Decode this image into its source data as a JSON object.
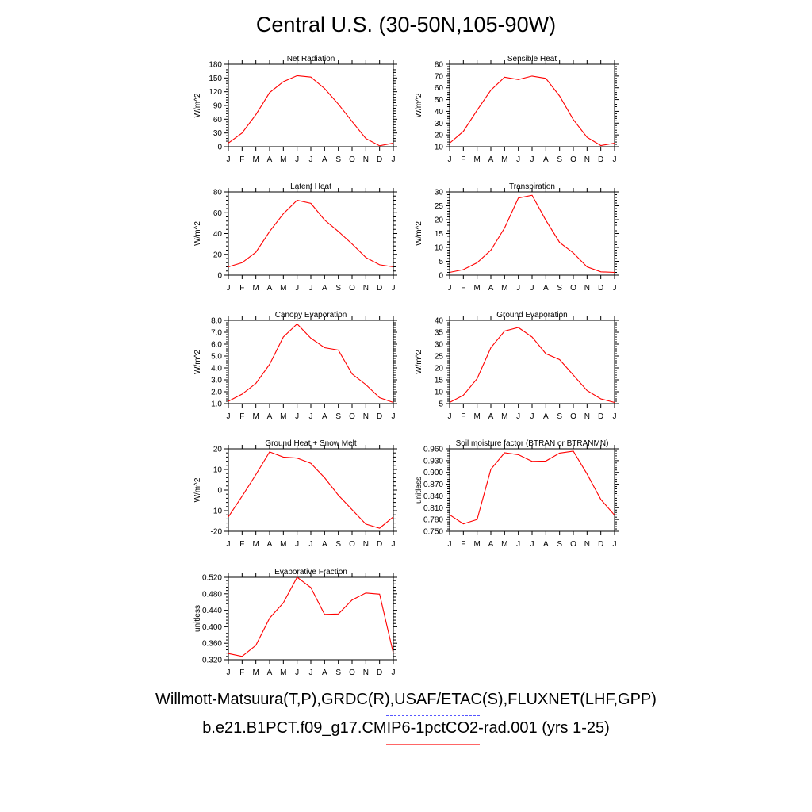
{
  "title": "Central U.S. (30-50N,105-90W)",
  "footer": {
    "obs_label": "Willmott-Matsuura(T,P),GRDC(R),USAF/ETAC(S),FLUXNET(LHF,GPP)",
    "model_label": "b.e21.B1PCT.f09_g17.CMIP6-1pctCO2-rad.001 (yrs 1-25)"
  },
  "colors": {
    "model_line": "#ff0000",
    "obs_line": "#5555ff",
    "axis": "#000000"
  },
  "chart_data": [
    {
      "type": "line",
      "title": "Net Radiation",
      "ylabel": "W/m^2",
      "ylim": [
        0,
        180
      ],
      "yticks": [
        "0",
        "30",
        "60",
        "90",
        "120",
        "150",
        "180"
      ],
      "x": [
        "J",
        "F",
        "M",
        "A",
        "M",
        "J",
        "J",
        "A",
        "S",
        "O",
        "N",
        "D",
        "J"
      ],
      "series": [
        {
          "values": [
            8,
            30,
            70,
            118,
            142,
            155,
            152,
            127,
            93,
            55,
            18,
            2,
            8
          ]
        }
      ]
    },
    {
      "type": "line",
      "title": "Sensible Heat",
      "ylabel": "W/m^2",
      "ylim": [
        10,
        80
      ],
      "yticks": [
        "10",
        "20",
        "30",
        "40",
        "50",
        "60",
        "70",
        "80"
      ],
      "x": [
        "J",
        "F",
        "M",
        "A",
        "M",
        "J",
        "J",
        "A",
        "S",
        "O",
        "N",
        "D",
        "J"
      ],
      "series": [
        {
          "values": [
            13,
            23,
            41,
            58,
            69,
            67,
            70,
            68,
            53,
            33,
            18,
            11,
            13
          ]
        }
      ]
    },
    {
      "type": "line",
      "title": "Latent Heat",
      "ylabel": "W/m^2",
      "ylim": [
        0,
        80
      ],
      "yticks": [
        "0",
        "20",
        "40",
        "60",
        "80"
      ],
      "x": [
        "J",
        "F",
        "M",
        "A",
        "M",
        "J",
        "J",
        "A",
        "S",
        "O",
        "N",
        "D",
        "J"
      ],
      "series": [
        {
          "values": [
            8,
            12,
            22,
            42,
            59,
            72,
            69,
            53,
            42,
            30,
            17,
            10,
            8
          ]
        }
      ]
    },
    {
      "type": "line",
      "title": "Transpiration",
      "ylabel": "W/m^2",
      "ylim": [
        0,
        30
      ],
      "yticks": [
        "0",
        "5",
        "10",
        "15",
        "20",
        "25",
        "30"
      ],
      "x": [
        "J",
        "F",
        "M",
        "A",
        "M",
        "J",
        "J",
        "A",
        "S",
        "O",
        "N",
        "D",
        "J"
      ],
      "series": [
        {
          "values": [
            1.0,
            2.0,
            4.5,
            9.0,
            17.0,
            27.8,
            28.8,
            19.8,
            11.8,
            8.0,
            3.0,
            1.2,
            1.0
          ]
        }
      ]
    },
    {
      "type": "line",
      "title": "Canopy Evaporation",
      "ylabel": "W/m^2",
      "ylim": [
        1.0,
        8.0
      ],
      "yticks": [
        "1.0",
        "2.0",
        "3.0",
        "4.0",
        "5.0",
        "6.0",
        "7.0",
        "8.0"
      ],
      "x": [
        "J",
        "F",
        "M",
        "A",
        "M",
        "J",
        "J",
        "A",
        "S",
        "O",
        "N",
        "D",
        "J"
      ],
      "series": [
        {
          "values": [
            1.2,
            1.8,
            2.7,
            4.3,
            6.6,
            7.7,
            6.5,
            5.7,
            5.5,
            3.5,
            2.6,
            1.5,
            1.1
          ]
        }
      ]
    },
    {
      "type": "line",
      "title": "Ground Evaporation",
      "ylabel": "W/m^2",
      "ylim": [
        5,
        40
      ],
      "yticks": [
        "5",
        "10",
        "15",
        "20",
        "25",
        "30",
        "35",
        "40"
      ],
      "x": [
        "J",
        "F",
        "M",
        "A",
        "M",
        "J",
        "J",
        "A",
        "S",
        "O",
        "N",
        "D",
        "J"
      ],
      "series": [
        {
          "values": [
            5.5,
            8.5,
            15.5,
            28.5,
            35.5,
            37,
            33,
            26,
            23.5,
            17,
            10.5,
            7,
            5.5
          ]
        }
      ]
    },
    {
      "type": "line",
      "title": "Ground Heat + Snow Melt",
      "ylabel": "W/m^2",
      "ylim": [
        -20,
        20
      ],
      "yticks": [
        "-20",
        "-10",
        "0",
        "10",
        "20"
      ],
      "x": [
        "J",
        "F",
        "M",
        "A",
        "M",
        "J",
        "J",
        "A",
        "S",
        "O",
        "N",
        "D",
        "J"
      ],
      "series": [
        {
          "values": [
            -13,
            -3,
            7.5,
            18.5,
            16,
            15.5,
            13,
            6,
            -2.5,
            -9.5,
            -16.5,
            -18.5,
            -13
          ]
        }
      ]
    },
    {
      "type": "line",
      "title": "Soil moisture factor (BTRAN or BTRANMN)",
      "ylabel": "unitless",
      "ylim": [
        0.75,
        0.96
      ],
      "yticks": [
        "0.750",
        "0.780",
        "0.810",
        "0.840",
        "0.870",
        "0.900",
        "0.930",
        "0.960"
      ],
      "x": [
        "J",
        "F",
        "M",
        "A",
        "M",
        "J",
        "J",
        "A",
        "S",
        "O",
        "N",
        "D",
        "J"
      ],
      "series": [
        {
          "values": [
            0.792,
            0.769,
            0.78,
            0.908,
            0.95,
            0.945,
            0.928,
            0.929,
            0.949,
            0.954,
            0.896,
            0.831,
            0.791
          ]
        }
      ]
    },
    {
      "type": "line",
      "title": "Evaporative Fraction",
      "ylabel": "unitless",
      "ylim": [
        0.32,
        0.52
      ],
      "yticks": [
        "0.320",
        "0.360",
        "0.400",
        "0.440",
        "0.480",
        "0.520"
      ],
      "x": [
        "J",
        "F",
        "M",
        "A",
        "M",
        "J",
        "J",
        "A",
        "S",
        "O",
        "N",
        "D",
        "J"
      ],
      "series": [
        {
          "values": [
            0.335,
            0.328,
            0.355,
            0.421,
            0.458,
            0.52,
            0.495,
            0.43,
            0.431,
            0.465,
            0.482,
            0.479,
            0.336
          ]
        }
      ]
    }
  ]
}
